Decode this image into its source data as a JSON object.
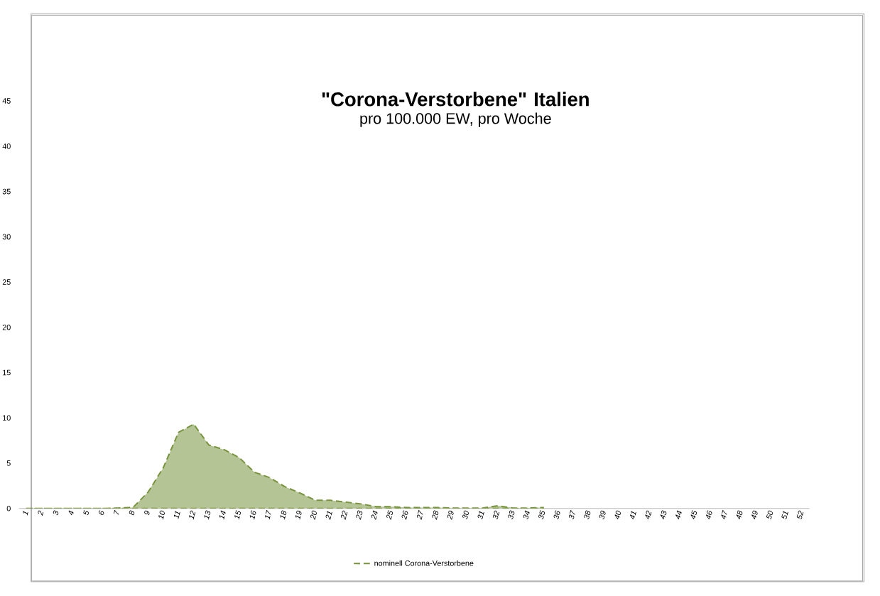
{
  "chart_data": {
    "type": "area",
    "title": "\"Corona-Verstorbene\" Italien",
    "subtitle": "pro 100.000 EW, pro Woche",
    "categories": [
      "1",
      "2",
      "3",
      "4",
      "5",
      "6",
      "7",
      "8",
      "9",
      "10",
      "11",
      "12",
      "13",
      "14",
      "15",
      "16",
      "17",
      "18",
      "19",
      "20",
      "21",
      "22",
      "23",
      "24",
      "25",
      "26",
      "27",
      "28",
      "29",
      "30",
      "31",
      "32",
      "33",
      "34",
      "35",
      "36",
      "37",
      "38",
      "39",
      "40",
      "41",
      "42",
      "43",
      "44",
      "45",
      "46",
      "47",
      "48",
      "49",
      "50",
      "51",
      "52"
    ],
    "series": [
      {
        "name": "nominell Corona-Verstorbene",
        "color": "#77933c",
        "line_style": "dashed",
        "values": [
          0,
          0,
          0,
          0,
          0,
          0,
          0.05,
          0.1,
          1.8,
          4.5,
          8.4,
          9.3,
          7.0,
          6.5,
          5.6,
          4.0,
          3.4,
          2.4,
          1.7,
          0.9,
          0.9,
          0.7,
          0.5,
          0.2,
          0.2,
          0.1,
          0.1,
          0.1,
          0.05,
          0.05,
          0.05,
          0.3,
          0.05,
          0.05,
          0.1,
          null,
          null,
          null,
          null,
          null,
          null,
          null,
          null,
          null,
          null,
          null,
          null,
          null,
          null,
          null,
          null,
          null
        ]
      }
    ],
    "ylim": [
      0,
      45
    ],
    "yticks": [
      0,
      5,
      10,
      15,
      20,
      25,
      30,
      35,
      40,
      45
    ],
    "grid": false,
    "legend": "bottom"
  }
}
